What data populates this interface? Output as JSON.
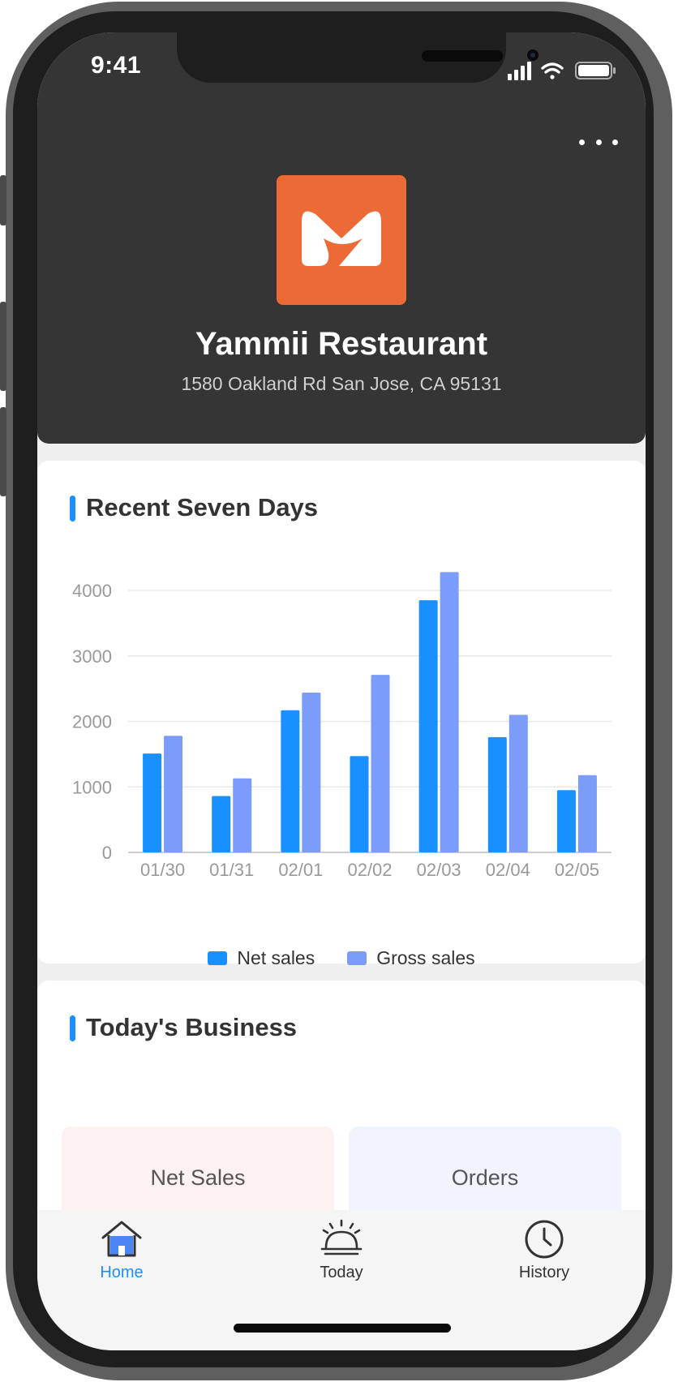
{
  "status_bar": {
    "time": "9:41"
  },
  "header": {
    "restaurant_name": "Yammii Restaurant",
    "address": "1580 Oakland Rd San Jose, CA 95131",
    "logo_color": "#ec6a36"
  },
  "recent_card": {
    "title": "Recent Seven Days"
  },
  "chart_data": {
    "type": "bar",
    "categories": [
      "01/30",
      "01/31",
      "02/01",
      "02/02",
      "02/03",
      "02/04",
      "02/05"
    ],
    "series": [
      {
        "name": "Net sales",
        "values": [
          1510,
          860,
          2170,
          1470,
          3850,
          1760,
          950
        ],
        "color": "#1890ff"
      },
      {
        "name": "Gross sales",
        "values": [
          1780,
          1130,
          2440,
          2710,
          4280,
          2100,
          1180
        ],
        "color": "#7b9cf8"
      }
    ],
    "y_ticks": [
      0,
      1000,
      2000,
      3000,
      4000
    ],
    "ylim": [
      0,
      4000
    ],
    "grid": true,
    "legend_placement": "bottom-center"
  },
  "business_card": {
    "title": "Today's Business",
    "tiles": [
      {
        "label": "Net Sales",
        "bg": "#fdf1f1"
      },
      {
        "label": "Orders",
        "bg": "#eff4fd"
      }
    ]
  },
  "tabbar": {
    "tabs": [
      {
        "label": "Home",
        "icon": "home-icon",
        "active": true
      },
      {
        "label": "Today",
        "icon": "service-bell-icon",
        "active": false
      },
      {
        "label": "History",
        "icon": "clock-icon",
        "active": false
      }
    ],
    "active_color": "#1890ff"
  }
}
